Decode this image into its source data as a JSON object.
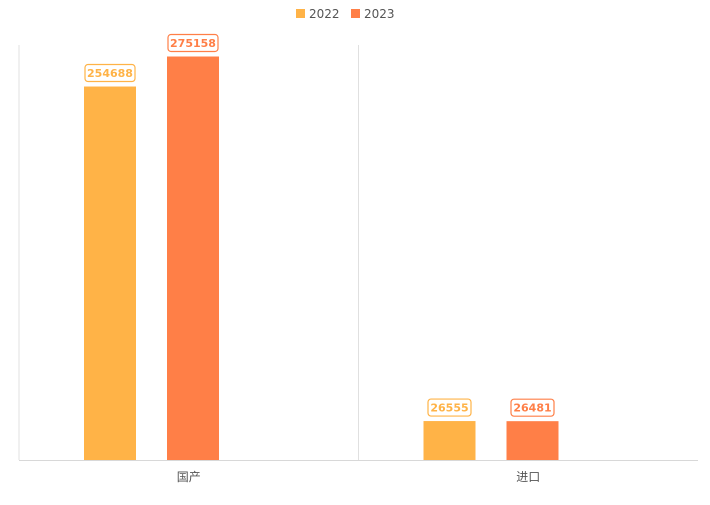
{
  "chart_data": {
    "type": "bar",
    "categories": [
      "国产",
      "进口"
    ],
    "series": [
      {
        "name": "2022",
        "values": [
          254688,
          26555
        ],
        "color": "#FFB347"
      },
      {
        "name": "2023",
        "values": [
          275158,
          26481
        ],
        "color": "#FF7F47"
      }
    ],
    "ylim": [
      0,
      283000
    ],
    "legend_position": "top-center",
    "grid": false,
    "category_separators": true,
    "data_labels": true
  }
}
